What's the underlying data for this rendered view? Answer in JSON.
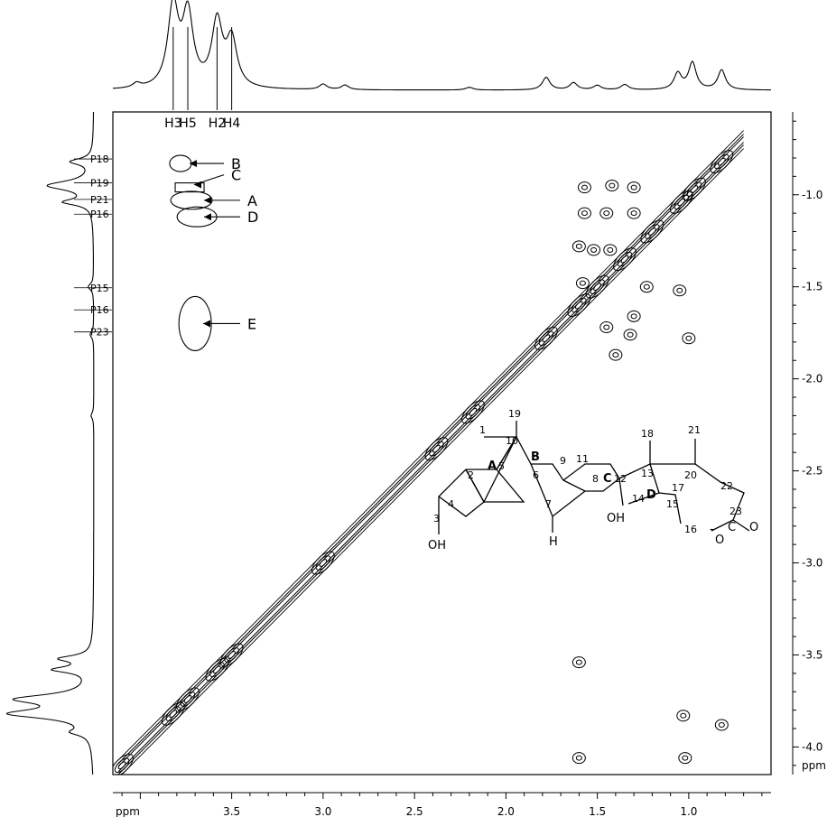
{
  "chart_data": {
    "type": "2D NMR contour plot",
    "x_axis": {
      "unit_label": "ppm",
      "lim": [
        4.15,
        0.55
      ],
      "ticks": [
        3.5,
        3.0,
        2.5,
        2.0,
        1.5,
        1.0
      ],
      "tick_labels": [
        "3.5",
        "3.0",
        "2.5",
        "2.0",
        "1.5",
        "1.0"
      ]
    },
    "y_axis": {
      "unit_label": "ppm",
      "lim": [
        0.55,
        4.15
      ],
      "ticks": [
        1.0,
        1.5,
        2.0,
        2.5,
        3.0,
        3.5,
        4.0
      ],
      "tick_labels": [
        "1.0",
        "1.5",
        "2.0",
        "2.5",
        "3.0",
        "3.5",
        "4.0"
      ]
    },
    "top_projection_labels": [
      {
        "label": "H3",
        "ppm": 3.82
      },
      {
        "label": "H5",
        "ppm": 3.74
      },
      {
        "label": "H2",
        "ppm": 3.58
      },
      {
        "label": "H4",
        "ppm": 3.5
      }
    ],
    "left_projection_labels": [
      {
        "label": "P18",
        "ppm": 0.82
      },
      {
        "label": "P19",
        "ppm": 0.95
      },
      {
        "label": "P21",
        "ppm": 1.04
      },
      {
        "label": "P16",
        "ppm": 1.12
      },
      {
        "label": "P15",
        "ppm": 1.52
      },
      {
        "label": "P16",
        "ppm": 1.64
      },
      {
        "label": "P23",
        "ppm": 1.76
      }
    ],
    "annotations": [
      {
        "label": "B",
        "x": 3.78,
        "y": 0.83
      },
      {
        "label": "C",
        "x": 3.73,
        "y": 0.96
      },
      {
        "label": "A",
        "x": 3.72,
        "y": 1.03
      },
      {
        "label": "D",
        "x": 3.69,
        "y": 1.12
      },
      {
        "label": "E",
        "x": 3.7,
        "y": 1.7
      }
    ],
    "diagonal_peaks": [
      {
        "x": 3.82,
        "y": 3.82
      },
      {
        "x": 3.74,
        "y": 3.74
      },
      {
        "x": 3.58,
        "y": 3.58
      },
      {
        "x": 3.5,
        "y": 3.5
      },
      {
        "x": 3.0,
        "y": 3.0
      },
      {
        "x": 2.38,
        "y": 2.38
      },
      {
        "x": 2.18,
        "y": 2.18
      },
      {
        "x": 1.78,
        "y": 1.78
      },
      {
        "x": 1.6,
        "y": 1.6
      },
      {
        "x": 1.5,
        "y": 1.5
      },
      {
        "x": 1.35,
        "y": 1.35
      },
      {
        "x": 1.2,
        "y": 1.2
      },
      {
        "x": 1.04,
        "y": 1.04
      },
      {
        "x": 0.97,
        "y": 0.97
      },
      {
        "x": 0.82,
        "y": 0.82
      },
      {
        "x": 4.1,
        "y": 4.1
      }
    ],
    "cross_peaks": [
      {
        "x": 1.57,
        "y": 0.96
      },
      {
        "x": 1.42,
        "y": 0.95
      },
      {
        "x": 1.3,
        "y": 0.96
      },
      {
        "x": 1.57,
        "y": 1.1
      },
      {
        "x": 1.45,
        "y": 1.1
      },
      {
        "x": 1.3,
        "y": 1.1
      },
      {
        "x": 1.6,
        "y": 1.28
      },
      {
        "x": 1.52,
        "y": 1.3
      },
      {
        "x": 1.43,
        "y": 1.3
      },
      {
        "x": 1.58,
        "y": 1.48
      },
      {
        "x": 1.23,
        "y": 1.5
      },
      {
        "x": 1.05,
        "y": 1.52
      },
      {
        "x": 1.3,
        "y": 1.66
      },
      {
        "x": 1.45,
        "y": 1.72
      },
      {
        "x": 1.32,
        "y": 1.76
      },
      {
        "x": 1.0,
        "y": 1.78
      },
      {
        "x": 1.4,
        "y": 1.87
      },
      {
        "x": 1.6,
        "y": 3.54
      },
      {
        "x": 1.03,
        "y": 3.83
      },
      {
        "x": 0.82,
        "y": 3.88
      },
      {
        "x": 1.6,
        "y": 4.06
      },
      {
        "x": 1.02,
        "y": 4.06
      }
    ],
    "structure": {
      "ring_labels": [
        "A",
        "B",
        "C",
        "D"
      ],
      "atom_numbers": [
        "1",
        "2",
        "3",
        "4",
        "5",
        "6",
        "7",
        "8",
        "9",
        "10",
        "11",
        "12",
        "13",
        "14",
        "15",
        "16",
        "17",
        "18",
        "19",
        "20",
        "21",
        "22",
        "23"
      ],
      "substituents": {
        "oh3": "OH",
        "oh14": "OH",
        "h7": "H",
        "c": "C",
        "o1": "O",
        "o2": "O",
        "minus": "-"
      }
    }
  }
}
